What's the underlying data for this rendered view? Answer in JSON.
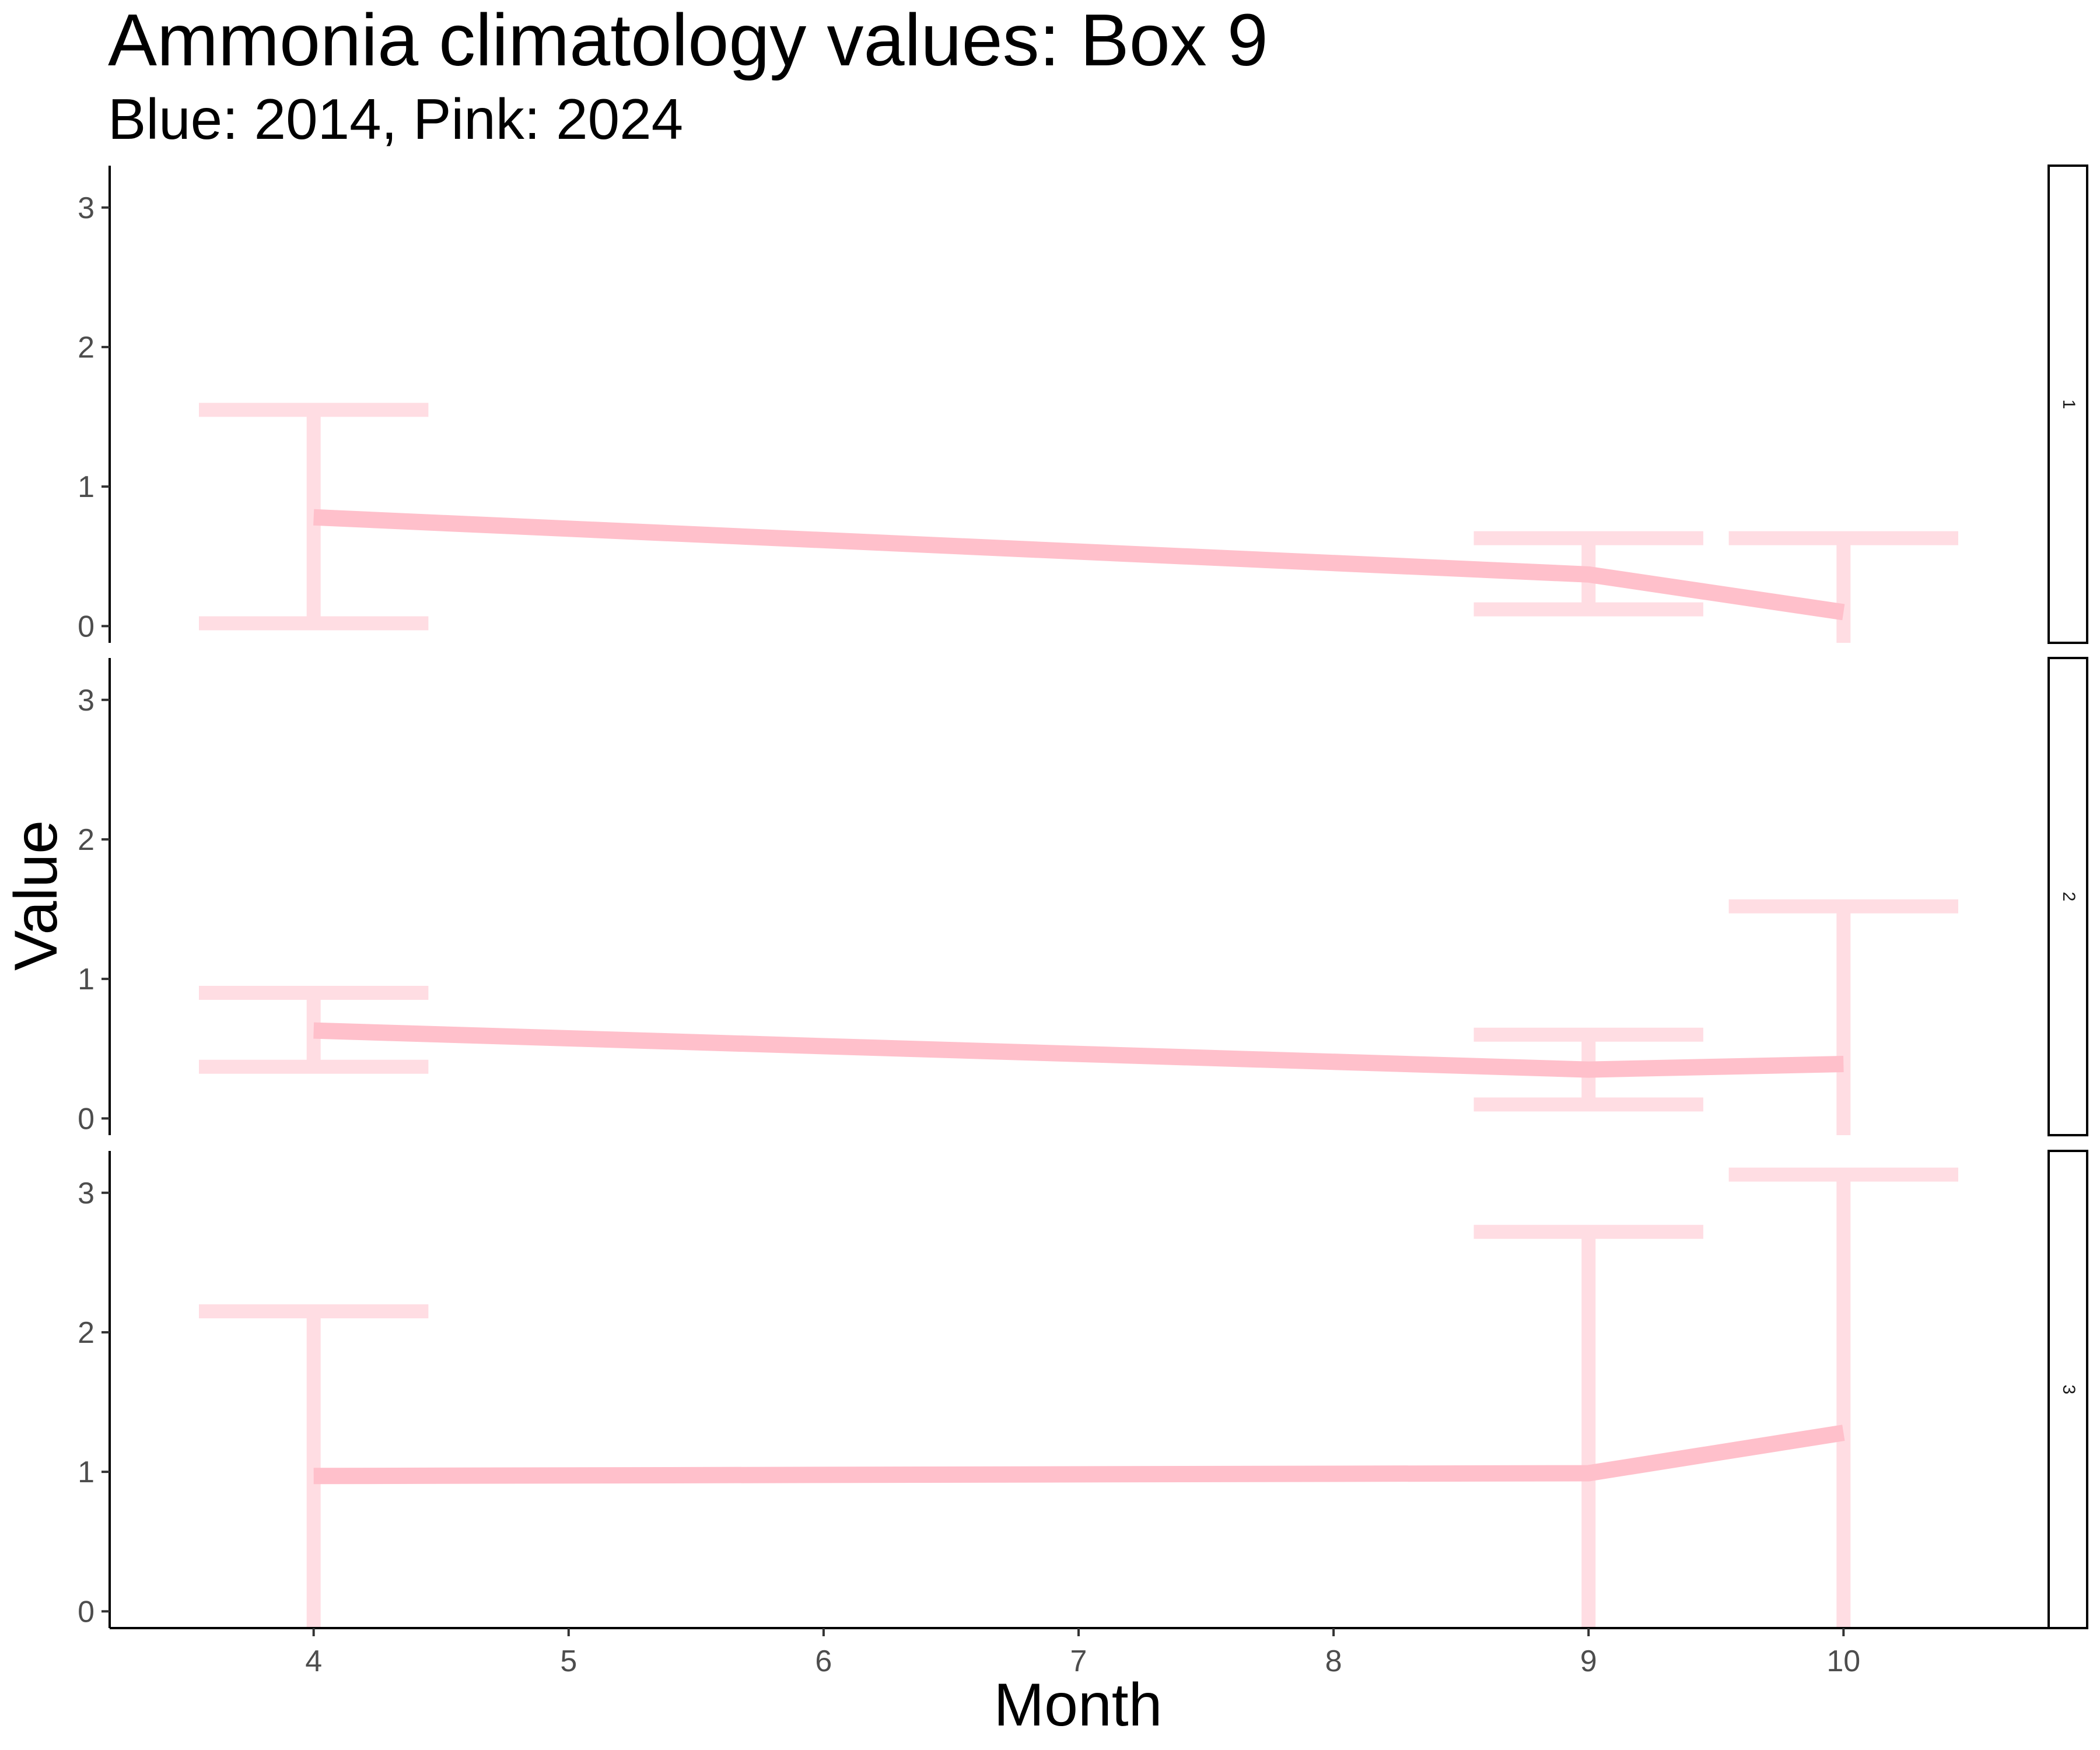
{
  "chart_data": {
    "type": "line",
    "title": "Ammonia climatology values: Box 9",
    "subtitle": "Blue: 2014, Pink: 2024",
    "xlabel": "Month",
    "ylabel": "Value",
    "x_ticks": [
      4,
      5,
      6,
      7,
      8,
      9,
      10
    ],
    "y_ticks": [
      0,
      1,
      2,
      3
    ],
    "xlim": [
      3.2,
      10.8
    ],
    "ylim": [
      -0.12,
      3.3
    ],
    "grid": false,
    "line_color": "#FFC0CB",
    "errorbar_color": "#FFDDE3",
    "panels": [
      {
        "label": "1",
        "points": [
          {
            "x": 4,
            "y": 0.78,
            "ymin": 0.02,
            "ymax": 1.55
          },
          {
            "x": 9,
            "y": 0.37,
            "ymin": 0.12,
            "ymax": 0.63
          },
          {
            "x": 10,
            "y": 0.1,
            "ymin": -0.15,
            "ymax": 0.63
          }
        ]
      },
      {
        "label": "2",
        "points": [
          {
            "x": 4,
            "y": 0.63,
            "ymin": 0.37,
            "ymax": 0.9
          },
          {
            "x": 9,
            "y": 0.35,
            "ymin": 0.1,
            "ymax": 0.6
          },
          {
            "x": 10,
            "y": 0.39,
            "ymin": -0.15,
            "ymax": 1.52
          }
        ]
      },
      {
        "label": "3",
        "points": [
          {
            "x": 4,
            "y": 0.97,
            "ymin": -0.15,
            "ymax": 2.15
          },
          {
            "x": 9,
            "y": 0.99,
            "ymin": -0.15,
            "ymax": 2.72
          },
          {
            "x": 10,
            "y": 1.28,
            "ymin": -0.15,
            "ymax": 3.13
          }
        ]
      }
    ]
  }
}
